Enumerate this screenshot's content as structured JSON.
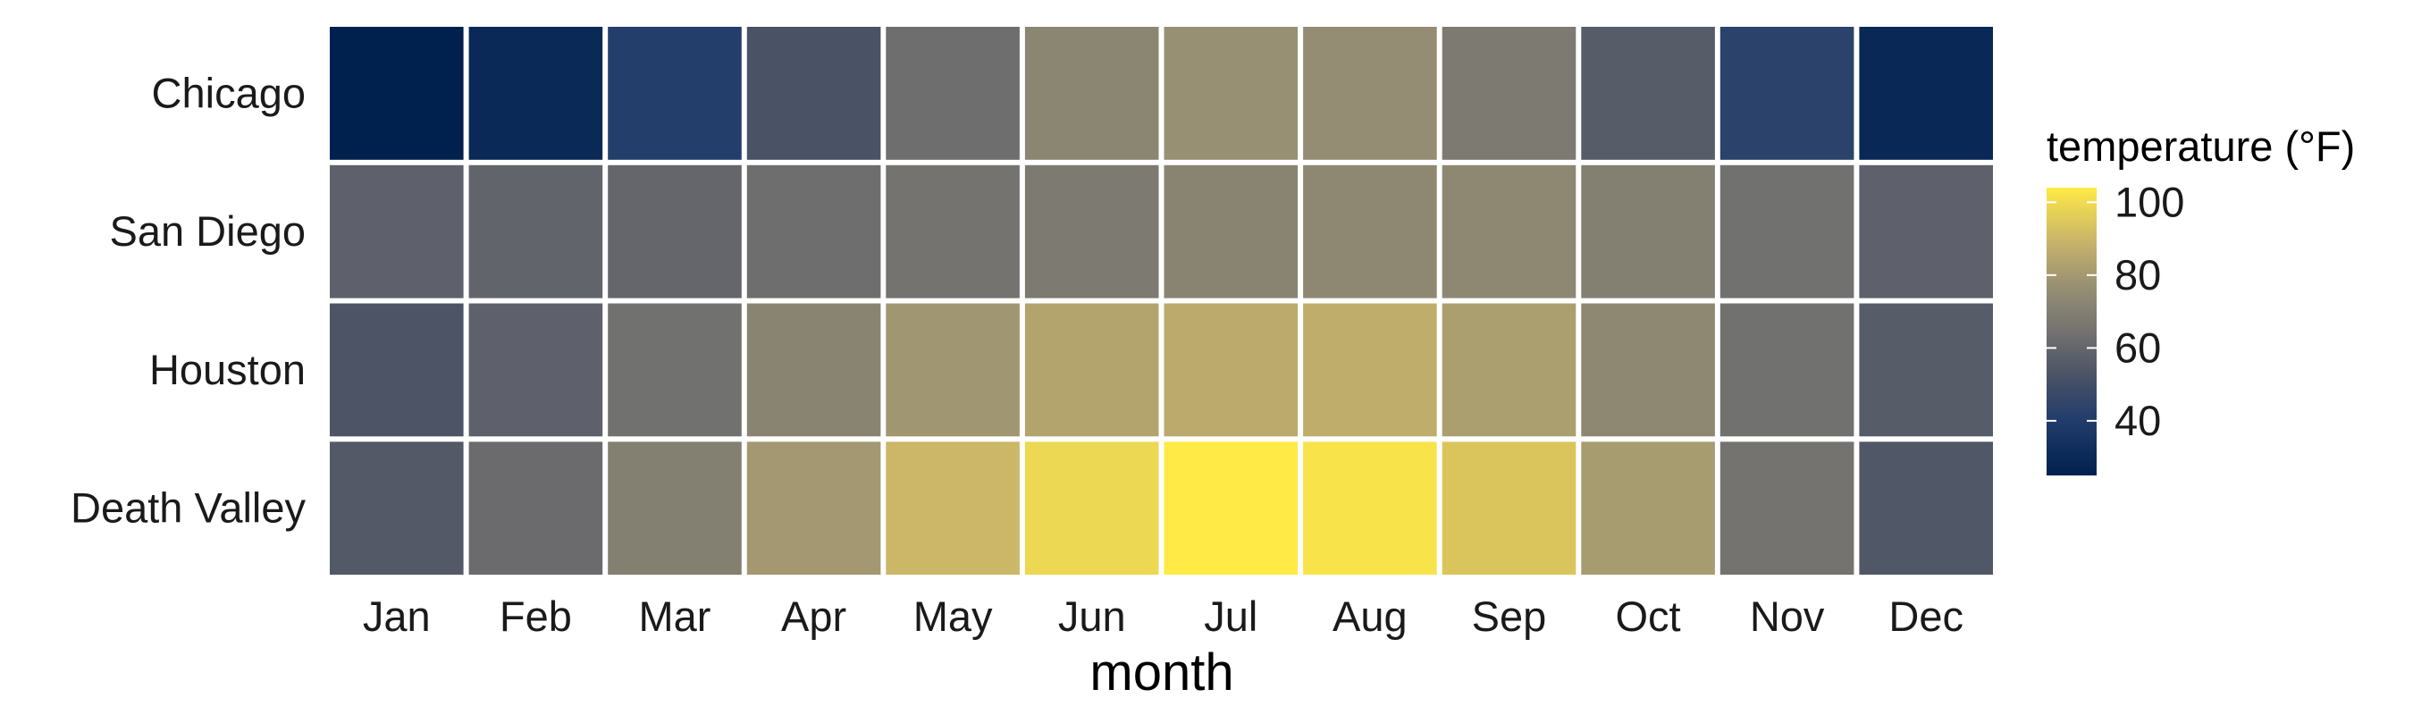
{
  "chart_data": {
    "type": "heatmap",
    "x_categories": [
      "Jan",
      "Feb",
      "Mar",
      "Apr",
      "May",
      "Jun",
      "Jul",
      "Aug",
      "Sep",
      "Oct",
      "Nov",
      "Dec"
    ],
    "y_categories": [
      "Chicago",
      "San Diego",
      "Houston",
      "Death Valley"
    ],
    "values": [
      [
        25,
        30,
        41,
        52,
        63,
        73,
        77,
        76,
        68,
        56,
        43,
        29
      ],
      [
        58,
        59,
        60,
        63,
        65,
        68,
        72,
        74,
        74,
        70,
        64,
        58
      ],
      [
        53,
        58,
        64,
        72,
        79,
        84,
        86,
        87,
        82,
        74,
        64,
        56
      ],
      [
        55,
        62,
        70,
        80,
        90,
        99,
        104,
        102,
        94,
        81,
        65,
        54
      ]
    ],
    "xlabel": "month",
    "ylabel": "",
    "legend": {
      "title": "temperature (°F)",
      "ticks": [
        40,
        60,
        80,
        100
      ],
      "range": [
        25,
        104
      ],
      "placement": "right"
    },
    "colors": {
      "low": "#00204d",
      "mid": "#7c7b78",
      "high": "#ffea46",
      "tile_border": "#ffffff"
    },
    "grid": false
  }
}
